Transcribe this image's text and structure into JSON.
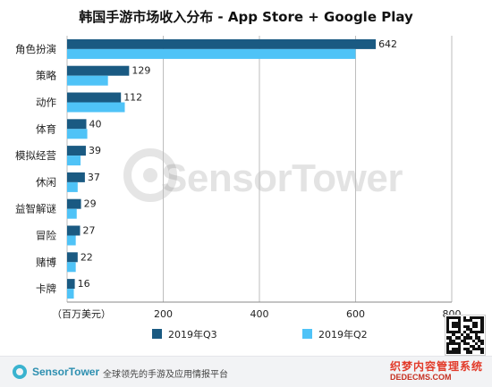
{
  "title": "韩国手游市场收入分布 - App Store + Google Play",
  "chart_data": {
    "type": "bar",
    "orientation": "horizontal",
    "categories": [
      "角色扮演",
      "策略",
      "动作",
      "体育",
      "模拟经营",
      "休闲",
      "益智解谜",
      "冒险",
      "赌博",
      "卡牌"
    ],
    "series": [
      {
        "name": "2019年Q3",
        "color": "#1a5a82",
        "values": [
          642,
          129,
          112,
          40,
          39,
          37,
          29,
          27,
          22,
          16
        ]
      },
      {
        "name": "2019年Q2",
        "color": "#4fc3f7",
        "values": [
          600,
          85,
          120,
          42,
          28,
          22,
          20,
          18,
          18,
          14
        ]
      }
    ],
    "data_labels": [
      "642",
      "129",
      "112",
      "40",
      "39",
      "37",
      "29",
      "27",
      "22",
      "16"
    ],
    "x_ticks": [
      "200",
      "400",
      "600",
      "800"
    ],
    "x_unit_label": "（百万美元）",
    "xlim": [
      0,
      800
    ],
    "grid": true,
    "legend_position": "bottom"
  },
  "watermark": "SensorTower",
  "footer": {
    "brand": "SensorTower",
    "tagline": "全球领先的手游及应用情报平台"
  },
  "site_mark": {
    "cn": "织梦内容管理系统",
    "en": "DEDECMS.COM"
  }
}
